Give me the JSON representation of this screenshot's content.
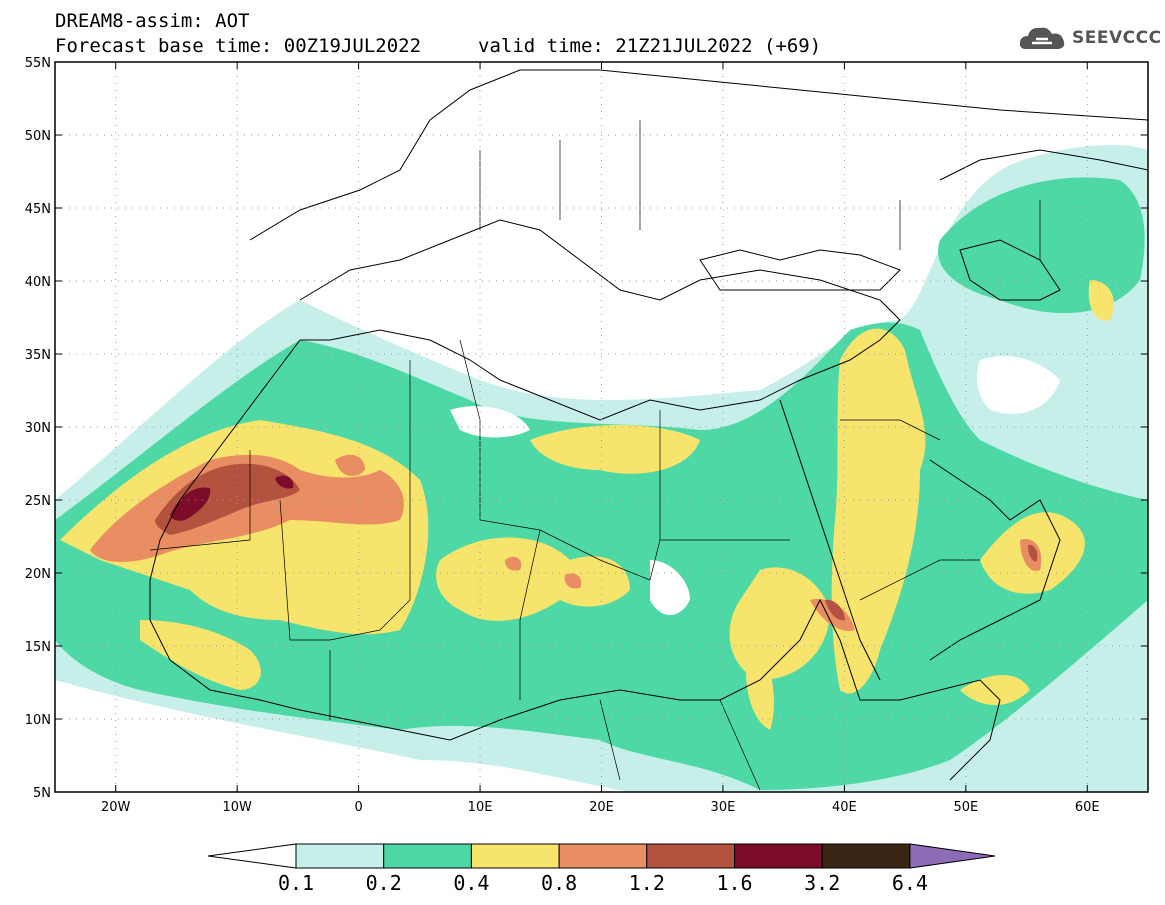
{
  "header": {
    "title": "DREAM8-assim: AOT",
    "base_time": "Forecast base time: 00Z19JUL2022",
    "valid_time": "valid time: 21Z21JUL2022 (+69)"
  },
  "logo": {
    "text": "SEEVCCC",
    "icon": "cloud-icon"
  },
  "map": {
    "variable": "Aerosol Optical Thickness (AOT)",
    "lon_range": [
      -25,
      65
    ],
    "lat_range": [
      5,
      55
    ],
    "lon_ticks": [
      {
        "value": -20,
        "label": "20W"
      },
      {
        "value": -10,
        "label": "10W"
      },
      {
        "value": 0,
        "label": "0"
      },
      {
        "value": 10,
        "label": "10E"
      },
      {
        "value": 20,
        "label": "20E"
      },
      {
        "value": 30,
        "label": "30E"
      },
      {
        "value": 40,
        "label": "40E"
      },
      {
        "value": 50,
        "label": "50E"
      },
      {
        "value": 60,
        "label": "60E"
      }
    ],
    "lat_ticks": [
      {
        "value": 55,
        "label": "55N"
      },
      {
        "value": 50,
        "label": "50N"
      },
      {
        "value": 45,
        "label": "45N"
      },
      {
        "value": 40,
        "label": "40N"
      },
      {
        "value": 35,
        "label": "35N"
      },
      {
        "value": 30,
        "label": "30N"
      },
      {
        "value": 25,
        "label": "25N"
      },
      {
        "value": 20,
        "label": "20N"
      },
      {
        "value": 15,
        "label": "15N"
      },
      {
        "value": 10,
        "label": "10N"
      },
      {
        "value": 5,
        "label": "5N"
      }
    ],
    "grid": "dotted"
  },
  "colorbar": {
    "levels": [
      "0.1",
      "0.2",
      "0.4",
      "0.8",
      "1.2",
      "1.6",
      "3.2",
      "6.4"
    ],
    "colors": [
      "#c7efe9",
      "#4ed8a6",
      "#f7e46c",
      "#e88e62",
      "#b3523f",
      "#7d0b2a",
      "#3a2414"
    ],
    "under_color": "#ffffff",
    "over_color": "#8e6bb5"
  }
}
